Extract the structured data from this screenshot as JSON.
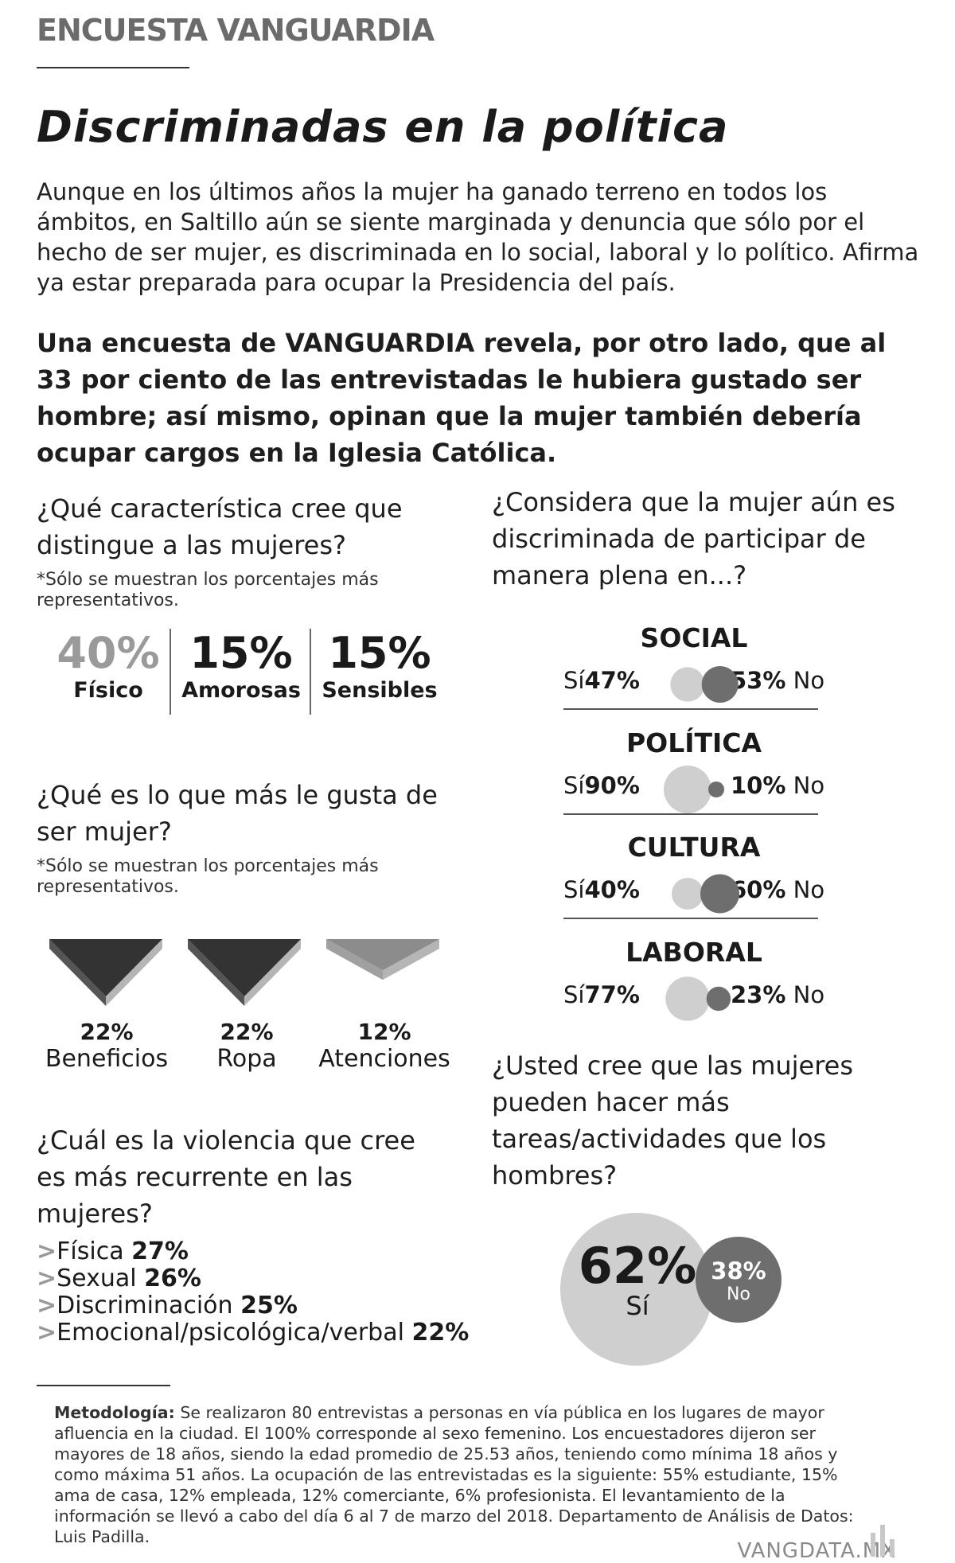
{
  "header": {
    "section": "ENCUESTA VANGUARDIA",
    "title": "Discriminadas en la política"
  },
  "intro": {
    "lead": "Aunque en los últimos años la mujer ha ganado terreno en todos los ámbitos, en Saltillo aún se siente marginada y denuncia que sólo por el hecho de ser mujer, es discriminada en lo social, laboral y lo político. Afirma ya estar preparada para ocupar la Presidencia del país.",
    "highlight": "Una encuesta de VANGUARDIA revela, por otro lado, que al 33 por ciento de las entrevistadas le hubiera gustado ser hombre; así mismo, opinan que la mujer también debería ocupar cargos en la Iglesia Católica."
  },
  "q1": {
    "question": "¿Qué característica cree que distingue a las mujeres?",
    "note": "*Sólo se muestran los porcentajes más representativos.",
    "items": [
      {
        "pct": "40%",
        "label": "Físico"
      },
      {
        "pct": "15%",
        "label": "Amorosas"
      },
      {
        "pct": "15%",
        "label": "Sensibles"
      }
    ]
  },
  "q2": {
    "question": "¿Qué es lo que más le gusta de ser mujer?",
    "note": "*Sólo se muestran los porcentajes más representativos.",
    "items": [
      {
        "pct": "22%",
        "label": "Beneficios"
      },
      {
        "pct": "22%",
        "label": "Ropa"
      },
      {
        "pct": "12%",
        "label": "Atenciones"
      }
    ]
  },
  "q3": {
    "question": "¿Cuál es la violencia que cree es más recurrente en las mujeres?",
    "items": [
      {
        "label": "Física",
        "pct": "27%"
      },
      {
        "label": "Sexual",
        "pct": "26%"
      },
      {
        "label": "Discriminación",
        "pct": "25%"
      },
      {
        "label": "Emocional/psicológica/verbal",
        "pct": "22%"
      }
    ]
  },
  "q4": {
    "question": "¿Considera que la mujer aún es discriminada de participar de manera plena en...?",
    "si": "Sí",
    "no": "No",
    "items": [
      {
        "title": "SOCIAL",
        "si_pct": "47%",
        "no_pct": "53%"
      },
      {
        "title": "POLÍTICA",
        "si_pct": "90%",
        "no_pct": "10%"
      },
      {
        "title": "CULTURA",
        "si_pct": "40%",
        "no_pct": "60%"
      },
      {
        "title": "LABORAL",
        "si_pct": "77%",
        "no_pct": "23%"
      }
    ]
  },
  "q5": {
    "question": "¿Usted cree que las mujeres pueden hacer más tareas/actividades que los hombres?",
    "si_pct": "62%",
    "si_label": "Sí",
    "no_pct": "38%",
    "no_label": "No"
  },
  "methodology": {
    "label": "Metodología:",
    "text": " Se realizaron 80 entrevistas a personas en vía pública en los lugares de mayor afluencia en la ciudad. El 100% corresponde al sexo femenino. Los encuestadores dijeron ser mayores de 18 años, siendo la edad promedio de 25.53 años, teniendo como mínima 18 años y como máxima 51 años. La ocupación de las entrevistadas es la siguiente: 55% estudiante, 15% ama de casa, 12% empleada, 12% comerciante, 6% profesionista. El levantamiento de la información se llevó a cabo del día 6 al 7 de marzo del 2018. Departamento de Análisis de Datos: Luis Padilla."
  },
  "footer": {
    "brand": "VANGDATA.MX"
  },
  "colors": {
    "light": "#cfcfcf",
    "dark": "#6e6e6e",
    "wedge_dark": "#333333",
    "wedge_side": "#b5b5b5",
    "wedge_light": "#8c8c8c"
  },
  "chart_data": [
    {
      "type": "bar",
      "title": "¿Qué característica cree que distingue a las mujeres?",
      "categories": [
        "Físico",
        "Amorosas",
        "Sensibles"
      ],
      "values": [
        40,
        15,
        15
      ]
    },
    {
      "type": "bar",
      "title": "¿Qué es lo que más le gusta de ser mujer?",
      "categories": [
        "Beneficios",
        "Ropa",
        "Atenciones"
      ],
      "values": [
        22,
        22,
        12
      ]
    },
    {
      "type": "bar",
      "title": "¿Cuál es la violencia que cree es más recurrente en las mujeres?",
      "categories": [
        "Física",
        "Sexual",
        "Discriminación",
        "Emocional/psicológica/verbal"
      ],
      "values": [
        27,
        26,
        25,
        22
      ]
    },
    {
      "type": "pie",
      "title": "¿Considera que la mujer aún es discriminada de participar de manera plena en...?",
      "categories": [
        "SOCIAL",
        "POLÍTICA",
        "CULTURA",
        "LABORAL"
      ],
      "series": [
        {
          "name": "Sí",
          "values": [
            47,
            90,
            40,
            77
          ]
        },
        {
          "name": "No",
          "values": [
            53,
            10,
            60,
            23
          ]
        }
      ]
    },
    {
      "type": "pie",
      "title": "¿Usted cree que las mujeres pueden hacer más tareas/actividades que los hombres?",
      "categories": [
        "Sí",
        "No"
      ],
      "values": [
        62,
        38
      ]
    }
  ]
}
